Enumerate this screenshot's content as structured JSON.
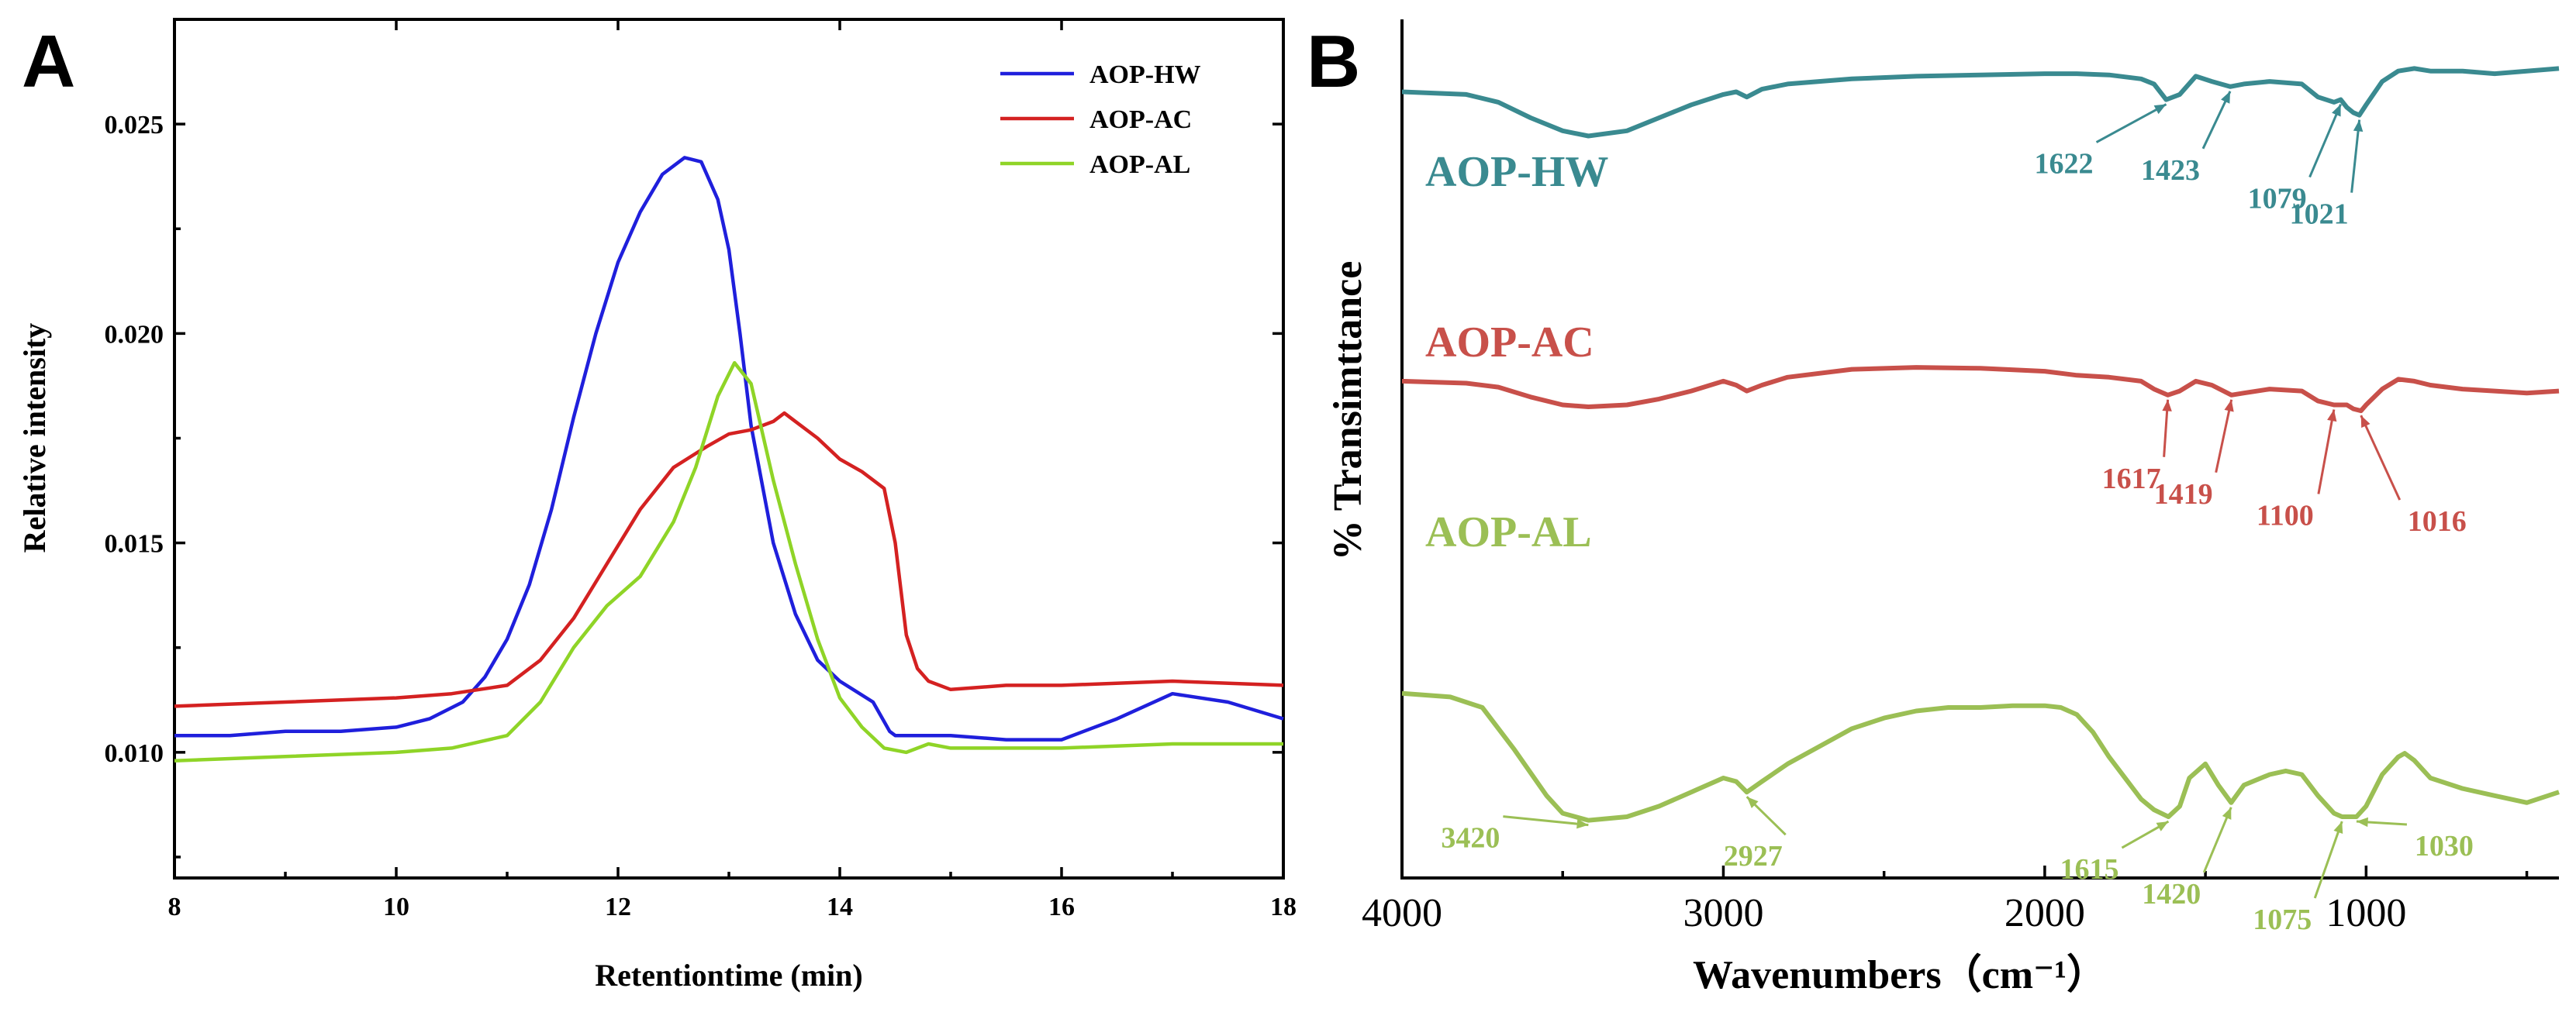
{
  "chart_data": [
    {
      "panel": "A",
      "type": "line",
      "xlabel": "Retentiontime (min)",
      "ylabel": "Relative intensity",
      "xlim": [
        8,
        18
      ],
      "ylim": [
        0.007,
        0.0275
      ],
      "xticks": [
        "8",
        "10",
        "12",
        "14",
        "16",
        "18"
      ],
      "yticks": [
        "0.010",
        "0.015",
        "0.020",
        "0.025"
      ],
      "legend_position": "top-right",
      "series": [
        {
          "name": "AOP-HW",
          "color": "#1f1fdc",
          "x": [
            8.0,
            8.5,
            9.0,
            9.5,
            10.0,
            10.3,
            10.6,
            10.8,
            11.0,
            11.2,
            11.4,
            11.6,
            11.8,
            12.0,
            12.2,
            12.4,
            12.6,
            12.75,
            12.9,
            13.0,
            13.1,
            13.2,
            13.4,
            13.6,
            13.8,
            14.0,
            14.3,
            14.45,
            14.5,
            15.0,
            15.5,
            16.0,
            16.5,
            17.0,
            17.5,
            18.0
          ],
          "y": [
            0.0104,
            0.0104,
            0.0105,
            0.0105,
            0.0106,
            0.0108,
            0.0112,
            0.0118,
            0.0127,
            0.014,
            0.0158,
            0.018,
            0.02,
            0.0217,
            0.0229,
            0.0238,
            0.0242,
            0.0241,
            0.0232,
            0.022,
            0.02,
            0.0178,
            0.015,
            0.0133,
            0.0122,
            0.0117,
            0.0112,
            0.0105,
            0.0104,
            0.0104,
            0.0103,
            0.0103,
            0.0108,
            0.0114,
            0.0112,
            0.0108
          ]
        },
        {
          "name": "AOP-AC",
          "color": "#d42121",
          "x": [
            8.0,
            9.0,
            10.0,
            10.5,
            11.0,
            11.3,
            11.6,
            11.9,
            12.2,
            12.5,
            12.8,
            13.0,
            13.2,
            13.4,
            13.5,
            13.6,
            13.8,
            14.0,
            14.2,
            14.4,
            14.5,
            14.6,
            14.7,
            14.8,
            15.0,
            15.5,
            16.0,
            17.0,
            18.0
          ],
          "y": [
            0.0111,
            0.0112,
            0.0113,
            0.0114,
            0.0116,
            0.0122,
            0.0132,
            0.0145,
            0.0158,
            0.0168,
            0.0173,
            0.0176,
            0.0177,
            0.0179,
            0.0181,
            0.0179,
            0.0175,
            0.017,
            0.0167,
            0.0163,
            0.015,
            0.0128,
            0.012,
            0.0117,
            0.0115,
            0.0116,
            0.0116,
            0.0117,
            0.0116
          ]
        },
        {
          "name": "AOP-AL",
          "color": "#8fd427",
          "x": [
            8.0,
            9.0,
            10.0,
            10.5,
            11.0,
            11.3,
            11.6,
            11.9,
            12.2,
            12.5,
            12.7,
            12.9,
            13.05,
            13.2,
            13.4,
            13.6,
            13.8,
            14.0,
            14.2,
            14.4,
            14.6,
            14.8,
            15.0,
            16.0,
            17.0,
            18.0
          ],
          "y": [
            0.0098,
            0.0099,
            0.01,
            0.0101,
            0.0104,
            0.0112,
            0.0125,
            0.0135,
            0.0142,
            0.0155,
            0.0168,
            0.0185,
            0.0193,
            0.0188,
            0.0165,
            0.0145,
            0.0127,
            0.0113,
            0.0106,
            0.0101,
            0.01,
            0.0102,
            0.0101,
            0.0101,
            0.0102,
            0.0102
          ]
        }
      ]
    },
    {
      "panel": "B",
      "type": "line",
      "xlabel": "Wavenumbers（cm⁻¹）",
      "ylabel": "% Transimttance",
      "xlim": [
        4000,
        400
      ],
      "xreversed": true,
      "ylim": [
        0,
        100
      ],
      "xticks": [
        "4000",
        "3000",
        "2000",
        "1000"
      ],
      "note": "y values are relative transmittance on an arbitrary offset scale (no y tick labels shown)",
      "series": [
        {
          "name": "AOP-HW",
          "color": "#3a8a90",
          "x": [
            4000,
            3800,
            3700,
            3600,
            3500,
            3420,
            3300,
            3200,
            3100,
            3000,
            2960,
            2927,
            2880,
            2800,
            2600,
            2400,
            2200,
            2000,
            1900,
            1800,
            1700,
            1660,
            1622,
            1580,
            1530,
            1480,
            1423,
            1380,
            1300,
            1200,
            1150,
            1100,
            1079,
            1060,
            1040,
            1021,
            1000,
            950,
            900,
            850,
            800,
            700,
            600,
            500,
            400
          ],
          "y": [
            90,
            89,
            86,
            80,
            75,
            73,
            75,
            80,
            85,
            89,
            90,
            88,
            91,
            93,
            95,
            96,
            96.5,
            97,
            97,
            96.5,
            95,
            93,
            87,
            89,
            96,
            94,
            92,
            93,
            94,
            93,
            88,
            86,
            87,
            84,
            82,
            81,
            85,
            94,
            98,
            99,
            98,
            98,
            97,
            98,
            99
          ]
        },
        {
          "name": "AOP-AC",
          "color": "#c8504a",
          "x": [
            4000,
            3800,
            3700,
            3600,
            3500,
            3420,
            3300,
            3200,
            3100,
            3000,
            2960,
            2927,
            2880,
            2800,
            2600,
            2400,
            2200,
            2000,
            1900,
            1800,
            1700,
            1660,
            1617,
            1580,
            1530,
            1480,
            1419,
            1380,
            1300,
            1200,
            1150,
            1100,
            1060,
            1040,
            1016,
            1000,
            950,
            900,
            850,
            800,
            700,
            600,
            500,
            400
          ],
          "y": [
            62,
            61,
            59,
            54,
            50,
            49,
            50,
            53,
            57,
            62,
            60,
            57,
            60,
            64,
            68,
            69,
            68.5,
            67,
            65,
            64,
            62,
            58,
            55,
            57,
            62,
            60,
            55,
            56,
            58,
            57,
            52,
            50,
            50,
            48,
            47,
            50,
            58,
            63,
            62,
            60,
            58,
            57,
            56,
            57
          ]
        },
        {
          "name": "AOP-AL",
          "color": "#9bbf55",
          "x": [
            4000,
            3850,
            3750,
            3650,
            3550,
            3500,
            3420,
            3300,
            3200,
            3100,
            3000,
            2960,
            2927,
            2880,
            2800,
            2700,
            2600,
            2500,
            2400,
            2300,
            2200,
            2100,
            2000,
            1950,
            1900,
            1850,
            1800,
            1750,
            1700,
            1660,
            1615,
            1580,
            1550,
            1500,
            1460,
            1420,
            1380,
            1300,
            1250,
            1200,
            1150,
            1100,
            1075,
            1050,
            1030,
            1000,
            950,
            900,
            880,
            850,
            800,
            700,
            600,
            500,
            400
          ],
          "y": [
            44,
            43,
            40,
            28,
            15,
            10,
            8,
            9,
            12,
            16,
            20,
            19,
            16,
            19,
            24,
            29,
            34,
            37,
            39,
            40,
            40,
            40.5,
            40.5,
            40,
            38,
            33,
            26,
            20,
            14,
            11,
            9,
            12,
            20,
            24,
            18,
            13,
            18,
            21,
            22,
            21,
            15,
            10,
            9,
            9,
            9,
            12,
            21,
            26,
            27,
            25,
            20,
            17,
            15,
            13,
            16
          ]
        }
      ],
      "series_labels": [
        "AOP-HW",
        "AOP-AC",
        "AOP-AL"
      ],
      "annotations": [
        {
          "series": "AOP-HW",
          "wavenumber": 1622,
          "text": "1622"
        },
        {
          "series": "AOP-HW",
          "wavenumber": 1423,
          "text": "1423"
        },
        {
          "series": "AOP-HW",
          "wavenumber": 1079,
          "text": "1079"
        },
        {
          "series": "AOP-HW",
          "wavenumber": 1021,
          "text": "1021"
        },
        {
          "series": "AOP-AC",
          "wavenumber": 1617,
          "text": "1617"
        },
        {
          "series": "AOP-AC",
          "wavenumber": 1419,
          "text": "1419"
        },
        {
          "series": "AOP-AC",
          "wavenumber": 1100,
          "text": "1100"
        },
        {
          "series": "AOP-AC",
          "wavenumber": 1016,
          "text": "1016"
        },
        {
          "series": "AOP-AL",
          "wavenumber": 3420,
          "text": "3420"
        },
        {
          "series": "AOP-AL",
          "wavenumber": 2927,
          "text": "2927"
        },
        {
          "series": "AOP-AL",
          "wavenumber": 1615,
          "text": "1615"
        },
        {
          "series": "AOP-AL",
          "wavenumber": 1420,
          "text": "1420"
        },
        {
          "series": "AOP-AL",
          "wavenumber": 1075,
          "text": "1075"
        },
        {
          "series": "AOP-AL",
          "wavenumber": 1030,
          "text": "1030"
        }
      ]
    }
  ],
  "panel_labels": {
    "a": "A",
    "b": "B"
  }
}
